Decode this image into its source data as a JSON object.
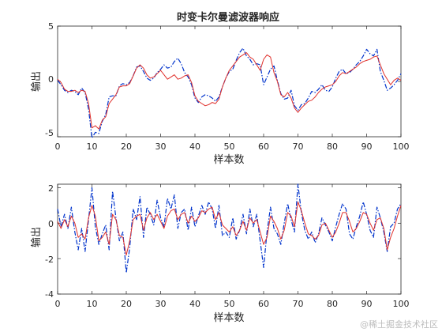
{
  "chart_data": [
    {
      "type": "line",
      "title": "时变卡尔曼滤波器响应",
      "xlabel": "样本数",
      "ylabel": "输出",
      "xlim": [
        0,
        100
      ],
      "ylim": [
        -5,
        5
      ],
      "xticks": [
        "0",
        "10",
        "20",
        "30",
        "40",
        "50",
        "60",
        "70",
        "80",
        "90",
        "100"
      ],
      "yticks": [
        "5",
        "0",
        "-5"
      ],
      "grid": false,
      "colors": [
        "#0033cc",
        "#e0302b"
      ],
      "x": [
        0,
        1,
        2,
        3,
        4,
        5,
        6,
        7,
        8,
        9,
        10,
        11,
        12,
        13,
        14,
        15,
        16,
        17,
        18,
        19,
        20,
        21,
        22,
        23,
        24,
        25,
        26,
        27,
        28,
        29,
        30,
        31,
        32,
        33,
        34,
        35,
        36,
        37,
        38,
        39,
        40,
        41,
        42,
        43,
        44,
        45,
        46,
        47,
        48,
        49,
        50,
        51,
        52,
        53,
        54,
        55,
        56,
        57,
        58,
        59,
        60,
        61,
        62,
        63,
        64,
        65,
        66,
        67,
        68,
        69,
        70,
        71,
        72,
        73,
        74,
        75,
        76,
        77,
        78,
        79,
        80,
        81,
        82,
        83,
        84,
        85,
        86,
        87,
        88,
        89,
        90,
        91,
        92,
        93,
        94,
        95,
        96,
        97,
        98,
        99,
        100
      ],
      "series": [
        {
          "style": "dash-dot",
          "values": [
            0.1,
            -0.3,
            -0.8,
            -1.0,
            -0.8,
            -0.9,
            -1.2,
            -0.6,
            -1.0,
            -2.5,
            -5.1,
            -4.6,
            -4.7,
            -3.6,
            -3.0,
            -1.4,
            -1.3,
            -1.3,
            -0.4,
            -0.2,
            -0.3,
            -0.1,
            0.5,
            1.3,
            1.4,
            0.9,
            0.3,
            0.1,
            0.3,
            0.8,
            1.1,
            1.5,
            1.2,
            1.3,
            1.8,
            2.1,
            1.6,
            0.8,
            0.4,
            -0.3,
            -1.5,
            -1.9,
            -1.4,
            -1.2,
            -1.3,
            -1.5,
            -1.8,
            -1.4,
            -0.5,
            0.3,
            0.9,
            1.1,
            1.9,
            2.6,
            3.0,
            2.3,
            2.0,
            1.5,
            1.6,
            1.5,
            -0.3,
            0.4,
            1.1,
            1.4,
            0.1,
            -1.1,
            -1.6,
            -1.5,
            -0.8,
            -2.2,
            -2.6,
            -2.1,
            -2.0,
            -1.5,
            -0.9,
            -1.0,
            -0.7,
            -0.3,
            -0.8,
            -0.9,
            -0.5,
            0.3,
            0.9,
            1.1,
            0.7,
            0.8,
            1.1,
            1.5,
            1.8,
            2.3,
            2.9,
            2.5,
            2.3,
            2.9,
            0.9,
            0.1,
            -0.8,
            -0.6,
            -0.3,
            0.1,
            0.7
          ]
        },
        {
          "style": "solid",
          "values": [
            0.2,
            -0.1,
            -0.7,
            -0.9,
            -0.9,
            -0.8,
            -1.0,
            -0.8,
            -0.9,
            -2.0,
            -4.2,
            -4.0,
            -4.3,
            -3.5,
            -3.2,
            -2.0,
            -1.6,
            -1.2,
            -0.5,
            -0.4,
            -0.4,
            -0.2,
            0.5,
            1.2,
            1.5,
            1.2,
            0.6,
            0.3,
            0.4,
            0.7,
            1.0,
            0.6,
            0.2,
            0.4,
            0.6,
            0.2,
            0.3,
            0.5,
            0.6,
            -0.1,
            -1.3,
            -1.8,
            -2.0,
            -2.2,
            -2.1,
            -1.9,
            -2.0,
            -1.6,
            -0.5,
            0.3,
            1.0,
            1.4,
            1.8,
            2.2,
            2.4,
            2.6,
            2.2,
            2.0,
            1.5,
            1.0,
            2.0,
            2.4,
            2.2,
            0.8,
            0.0,
            -1.2,
            -1.4,
            -1.0,
            -1.5,
            -2.4,
            -2.8,
            -2.4,
            -2.1,
            -1.8,
            -1.7,
            -1.4,
            -1.0,
            -0.7,
            -0.5,
            -0.4,
            -0.3,
            0.0,
            0.5,
            0.8,
            0.7,
            0.9,
            1.1,
            1.3,
            1.6,
            1.8,
            1.9,
            2.0,
            2.2,
            2.3,
            1.5,
            0.7,
            0.2,
            -0.3,
            0.1,
            0.3,
            0.1
          ]
        }
      ]
    },
    {
      "type": "line",
      "title": "",
      "xlabel": "样本数",
      "ylabel": "输出",
      "xlim": [
        0,
        100
      ],
      "ylim": [
        -4,
        2.2
      ],
      "xticks": [
        "0",
        "10",
        "20",
        "30",
        "40",
        "50",
        "60",
        "70",
        "80",
        "90",
        "100"
      ],
      "yticks": [
        "2",
        "0",
        "-2",
        "-4"
      ],
      "grid": false,
      "colors": [
        "#0033cc",
        "#e0302b"
      ],
      "x": [
        0,
        1,
        2,
        3,
        4,
        5,
        6,
        7,
        8,
        9,
        10,
        11,
        12,
        13,
        14,
        15,
        16,
        17,
        18,
        19,
        20,
        21,
        22,
        23,
        24,
        25,
        26,
        27,
        28,
        29,
        30,
        31,
        32,
        33,
        34,
        35,
        36,
        37,
        38,
        39,
        40,
        41,
        42,
        43,
        44,
        45,
        46,
        47,
        48,
        49,
        50,
        51,
        52,
        53,
        54,
        55,
        56,
        57,
        58,
        59,
        60,
        61,
        62,
        63,
        64,
        65,
        66,
        67,
        68,
        69,
        70,
        71,
        72,
        73,
        74,
        75,
        76,
        77,
        78,
        79,
        80,
        81,
        82,
        83,
        84,
        85,
        86,
        87,
        88,
        89,
        90,
        91,
        92,
        93,
        94,
        95,
        96,
        97,
        98,
        99,
        100
      ],
      "series": [
        {
          "style": "dash-dot",
          "values": [
            0.8,
            -0.2,
            0.5,
            -0.3,
            0.9,
            -0.5,
            -1.5,
            -0.3,
            -1.6,
            0.2,
            2.0,
            -0.2,
            -1.2,
            -0.6,
            -0.1,
            -1.5,
            1.8,
            0.3,
            -1.0,
            -0.5,
            -2.8,
            -1.4,
            0.8,
            0.2,
            1.5,
            -0.8,
            0.9,
            0.5,
            -0.1,
            1.3,
            0.3,
            -0.2,
            1.4,
            0.8,
            1.6,
            -0.3,
            0.6,
            0.8,
            -0.4,
            0.9,
            -0.2,
            0.4,
            1.0,
            0.5,
            1.2,
            0.8,
            -0.3,
            1.0,
            -0.7,
            -0.5,
            -0.8,
            0.3,
            -0.9,
            -0.4,
            0.5,
            -0.6,
            0.8,
            -0.2,
            0.5,
            -1.0,
            -2.5,
            -0.5,
            0.9,
            -0.3,
            -0.6,
            -1.2,
            0.0,
            1.1,
            0.2,
            -0.5,
            2.2,
            0.6,
            -0.4,
            -0.9,
            -0.5,
            -1.1,
            -0.6,
            0.3,
            -0.1,
            -0.5,
            -1.0,
            -0.2,
            0.5,
            1.1,
            0.8,
            -0.6,
            -0.9,
            -0.2,
            0.4,
            1.2,
            0.5,
            -0.4,
            -0.8,
            0.9,
            0.3,
            -0.5,
            -1.6,
            -0.2,
            0.0,
            0.8,
            1.1
          ]
        },
        {
          "style": "solid",
          "values": [
            0.1,
            -0.3,
            0.2,
            -0.2,
            0.4,
            0.0,
            -0.8,
            -0.6,
            -0.9,
            0.3,
            1.0,
            0.4,
            -1.0,
            -0.8,
            -0.5,
            -1.2,
            0.5,
            0.2,
            -0.7,
            -0.8,
            -1.8,
            -1.0,
            0.2,
            0.4,
            0.5,
            -0.4,
            0.3,
            0.6,
            0.2,
            0.5,
            0.1,
            -0.3,
            0.4,
            0.7,
            0.8,
            0.2,
            0.5,
            0.6,
            0.0,
            0.4,
            0.1,
            0.3,
            0.7,
            0.6,
            0.8,
            0.9,
            0.2,
            0.6,
            -0.1,
            -0.3,
            -0.5,
            -0.2,
            -0.7,
            -0.4,
            0.1,
            -0.4,
            0.3,
            0.0,
            0.2,
            -0.5,
            -1.2,
            -0.8,
            0.4,
            0.1,
            -0.3,
            -0.9,
            -0.4,
            0.6,
            0.4,
            -0.2,
            1.2,
            0.7,
            0.0,
            -0.6,
            -0.7,
            -0.9,
            -0.7,
            -0.1,
            0.0,
            -0.4,
            -0.8,
            -0.5,
            0.0,
            0.6,
            0.6,
            0.1,
            -0.5,
            -0.3,
            0.1,
            0.6,
            0.5,
            0.0,
            -0.4,
            0.2,
            0.3,
            -0.3,
            -1.5,
            -0.8,
            -0.3,
            0.4,
            1.0
          ]
        }
      ]
    }
  ],
  "watermark": "@稀土掘金技术社区"
}
